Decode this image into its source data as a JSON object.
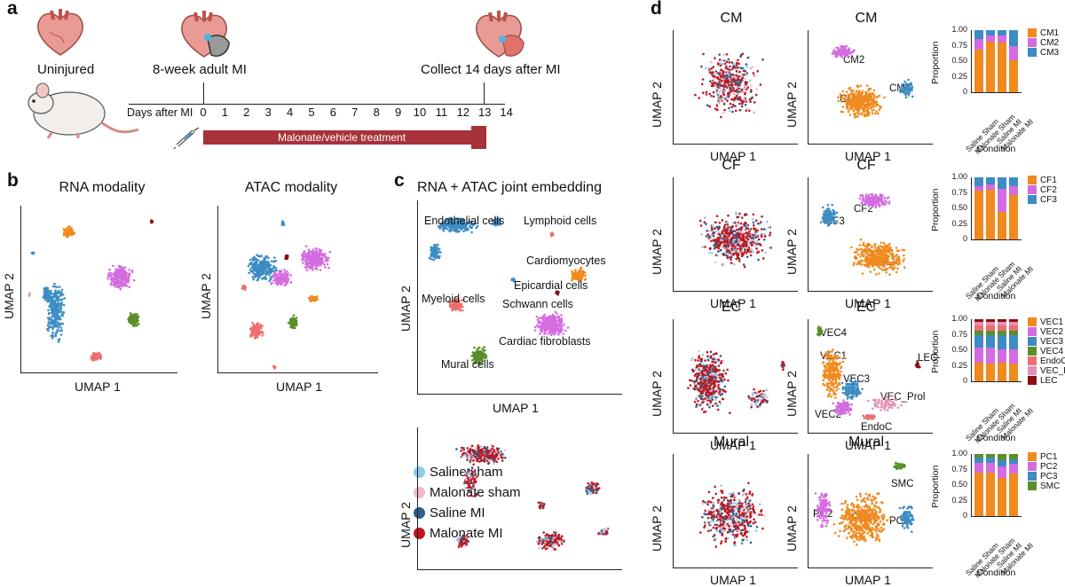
{
  "panels": {
    "a": {
      "label": "a",
      "uninjured": "Uninjured",
      "mi": "8-week adult MI",
      "collect": "Collect 14 days after MI",
      "days_label": "Days after MI",
      "days": [
        "0",
        "1",
        "2",
        "3",
        "4",
        "5",
        "6",
        "7",
        "8",
        "9",
        "10",
        "11",
        "12",
        "13",
        "14"
      ],
      "treatment": "Malonate/vehicle treatment",
      "colors": {
        "bar": "#a8323a"
      }
    },
    "b": {
      "label": "b",
      "rna_title": "RNA modality",
      "atac_title": "ATAC modality",
      "xlabel": "UMAP 1",
      "ylabel": "UMAP 2"
    },
    "c": {
      "label": "c",
      "title": "RNA + ATAC joint embedding",
      "xlabel": "UMAP 1",
      "ylabel": "UMAP 2",
      "clusters": [
        "Endothelial cells",
        "Lymphoid cells",
        "Cardiomyocytes",
        "Epicardial cells",
        "Myeloid cells",
        "Schwann cells",
        "Cardiac fibroblasts",
        "Mural cells"
      ],
      "legend": [
        "Saline sham",
        "Malonate sham",
        "Saline MI",
        "Malonate MI"
      ],
      "legend_colors": [
        "#8ecae8",
        "#f3b8cc",
        "#2f5f8a",
        "#c4151c"
      ]
    },
    "d": {
      "label": "d",
      "xlabel": "UMAP 1",
      "ylabel": "UMAP 2",
      "bar_ylabel": "Proportion",
      "bar_xlabel": "Condition",
      "conditions": [
        "Saline Sham",
        "Malonate Sham",
        "Saline MI",
        "Malonate MI"
      ],
      "yticks": [
        "0",
        "0.25",
        "0.50",
        "0.75",
        "1.00"
      ],
      "rows": [
        {
          "title": "CM",
          "subtypes": [
            "CM1",
            "CM2",
            "CM3"
          ],
          "colors": [
            "#f08a1e",
            "#d46be0",
            "#3d8cc4"
          ]
        },
        {
          "title": "CF",
          "subtypes": [
            "CF1",
            "CF2",
            "CF3"
          ],
          "colors": [
            "#f08a1e",
            "#d46be0",
            "#3d8cc4"
          ]
        },
        {
          "title": "EC",
          "subtypes": [
            "VEC1",
            "VEC2",
            "VEC3",
            "VEC4",
            "EndoC",
            "VEC_Prol",
            "LEC"
          ],
          "colors": [
            "#f08a1e",
            "#d46be0",
            "#3d8cc4",
            "#5a8f29",
            "#ec6f6f",
            "#e38fb6",
            "#8c0f14"
          ],
          "annot": [
            "VEC4",
            "VEC1",
            "VEC3",
            "LEC",
            "VEC_Prol",
            "VEC2",
            "EndoC"
          ]
        },
        {
          "title": "Mural",
          "subtypes": [
            "PC1",
            "PC2",
            "PC3",
            "SMC"
          ],
          "colors": [
            "#f08a1e",
            "#d46be0",
            "#3d8cc4",
            "#5a8f29"
          ]
        }
      ]
    }
  },
  "chart_data": [
    {
      "type": "bar",
      "title": "CM",
      "categories": [
        "Saline Sham",
        "Malonate Sham",
        "Saline MI",
        "Malonate MI"
      ],
      "ylabel": "Proportion",
      "xlabel": "Condition",
      "ylim": [
        0,
        1
      ],
      "series": [
        {
          "name": "CM1",
          "values": [
            0.68,
            0.82,
            0.8,
            0.52
          ]
        },
        {
          "name": "CM2",
          "values": [
            0.18,
            0.1,
            0.12,
            0.22
          ]
        },
        {
          "name": "CM3",
          "values": [
            0.14,
            0.08,
            0.08,
            0.26
          ]
        }
      ]
    },
    {
      "type": "bar",
      "title": "CF",
      "categories": [
        "Saline Sham",
        "Malonate Sham",
        "Saline MI",
        "Malonate MI"
      ],
      "ylabel": "Proportion",
      "xlabel": "Condition",
      "ylim": [
        0,
        1
      ],
      "series": [
        {
          "name": "CF1",
          "values": [
            0.78,
            0.8,
            0.44,
            0.72
          ]
        },
        {
          "name": "CF2",
          "values": [
            0.08,
            0.08,
            0.38,
            0.14
          ]
        },
        {
          "name": "CF3",
          "values": [
            0.14,
            0.12,
            0.18,
            0.14
          ]
        }
      ]
    },
    {
      "type": "bar",
      "title": "EC",
      "categories": [
        "Saline Sham",
        "Malonate Sham",
        "Saline MI",
        "Malonate MI"
      ],
      "ylabel": "Proportion",
      "xlabel": "Condition",
      "ylim": [
        0,
        1
      ],
      "series": [
        {
          "name": "VEC1",
          "values": [
            0.3,
            0.28,
            0.3,
            0.28
          ]
        },
        {
          "name": "VEC2",
          "values": [
            0.24,
            0.26,
            0.22,
            0.24
          ]
        },
        {
          "name": "VEC3",
          "values": [
            0.2,
            0.2,
            0.22,
            0.22
          ]
        },
        {
          "name": "VEC4",
          "values": [
            0.08,
            0.08,
            0.08,
            0.08
          ]
        },
        {
          "name": "EndoC",
          "values": [
            0.08,
            0.08,
            0.08,
            0.08
          ]
        },
        {
          "name": "VEC_Prol",
          "values": [
            0.06,
            0.06,
            0.06,
            0.06
          ]
        },
        {
          "name": "LEC",
          "values": [
            0.04,
            0.04,
            0.04,
            0.04
          ]
        }
      ]
    },
    {
      "type": "bar",
      "title": "Mural",
      "categories": [
        "Saline Sham",
        "Malonate Sham",
        "Saline MI",
        "Malonate MI"
      ],
      "ylabel": "Proportion",
      "xlabel": "Condition",
      "ylim": [
        0,
        1
      ],
      "series": [
        {
          "name": "PC1",
          "values": [
            0.7,
            0.7,
            0.62,
            0.68
          ]
        },
        {
          "name": "PC2",
          "values": [
            0.16,
            0.16,
            0.18,
            0.16
          ]
        },
        {
          "name": "PC3",
          "values": [
            0.08,
            0.08,
            0.1,
            0.08
          ]
        },
        {
          "name": "SMC",
          "values": [
            0.06,
            0.06,
            0.1,
            0.08
          ]
        }
      ]
    }
  ]
}
